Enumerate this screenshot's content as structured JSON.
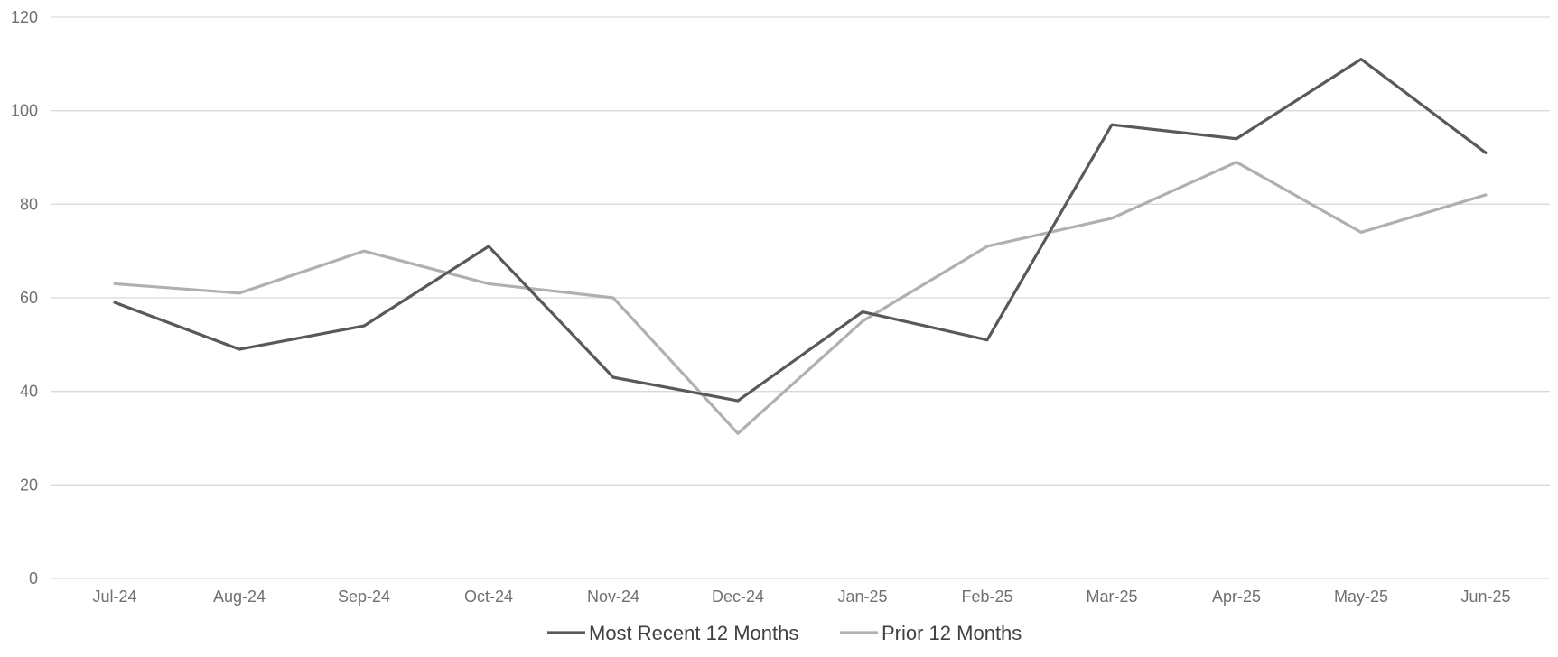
{
  "chart_data": {
    "type": "line",
    "title": "",
    "xlabel": "",
    "ylabel": "",
    "categories": [
      "Jul-24",
      "Aug-24",
      "Sep-24",
      "Oct-24",
      "Nov-24",
      "Dec-24",
      "Jan-25",
      "Feb-25",
      "Mar-25",
      "Apr-25",
      "May-25",
      "Jun-25"
    ],
    "ylim": [
      0,
      120
    ],
    "yticks": [
      0,
      20,
      40,
      60,
      80,
      100,
      120
    ],
    "grid": true,
    "legend_position": "bottom-center",
    "series": [
      {
        "name": "Most Recent 12 Months",
        "color": "#595959",
        "values": [
          59,
          49,
          54,
          71,
          43,
          38,
          57,
          51,
          97,
          94,
          111,
          91
        ]
      },
      {
        "name": "Prior 12 Months",
        "color": "#b0b0b0",
        "values": [
          63,
          61,
          70,
          63,
          60,
          31,
          55,
          71,
          77,
          89,
          74,
          82
        ]
      }
    ]
  }
}
